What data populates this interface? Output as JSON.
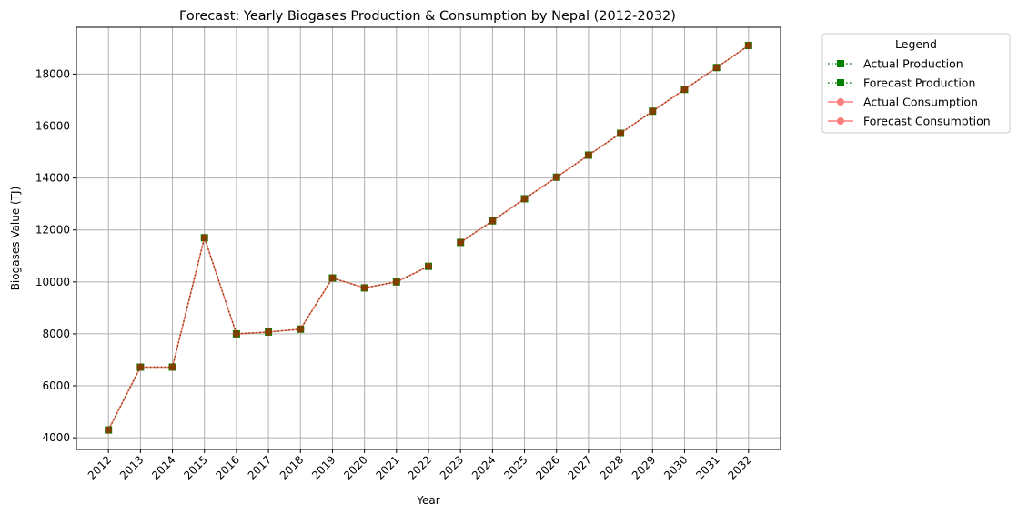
{
  "chart_data": {
    "type": "line",
    "title": "Forecast: Yearly Biogases Production & Consumption by Nepal (2012-2032)",
    "xlabel": "Year",
    "ylabel": "Biogases Value (TJ)",
    "x": [
      2012,
      2013,
      2014,
      2015,
      2016,
      2017,
      2018,
      2019,
      2020,
      2021,
      2022,
      2023,
      2024,
      2025,
      2026,
      2027,
      2028,
      2029,
      2030,
      2031,
      2032
    ],
    "x_tick_labels": [
      "2012",
      "2013",
      "2014",
      "2015",
      "2016",
      "2017",
      "2018",
      "2019",
      "2020",
      "2021",
      "2022",
      "2023",
      "2024",
      "2025",
      "2026",
      "2027",
      "2028",
      "2029",
      "2030",
      "2031",
      "2032"
    ],
    "y_ticks": [
      4000,
      6000,
      8000,
      10000,
      12000,
      14000,
      16000,
      18000
    ],
    "y_tick_labels": [
      "4000",
      "6000",
      "8000",
      "10000",
      "12000",
      "14000",
      "16000",
      "18000"
    ],
    "ylim": [
      3550,
      19800
    ],
    "grid": true,
    "legend_title": "Legend",
    "legend_position": "outside-top-right",
    "series": [
      {
        "name": "Actual Production",
        "color": "#008000",
        "marker": "square",
        "line_style": "dotted",
        "x": [
          2012,
          2013,
          2014,
          2015,
          2016,
          2017,
          2018,
          2019,
          2020,
          2021,
          2022
        ],
        "values": [
          4300,
          6720,
          6720,
          11700,
          8000,
          8070,
          8180,
          10150,
          9770,
          10000,
          10600
        ]
      },
      {
        "name": "Forecast Production",
        "color": "#008000",
        "marker": "square",
        "line_style": "dotted",
        "x": [
          2023,
          2024,
          2025,
          2026,
          2027,
          2028,
          2029,
          2030,
          2031,
          2032
        ],
        "values": [
          11520,
          12350,
          13200,
          14030,
          14880,
          15720,
          16570,
          17410,
          18250,
          19100
        ]
      },
      {
        "name": "Actual Consumption",
        "color": "#ff0000",
        "opacity": 0.5,
        "marker": "circle",
        "line_style": "solid",
        "x": [
          2012,
          2013,
          2014,
          2015,
          2016,
          2017,
          2018,
          2019,
          2020,
          2021,
          2022
        ],
        "values": [
          4300,
          6720,
          6720,
          11700,
          8000,
          8070,
          8180,
          10150,
          9770,
          10000,
          10600
        ]
      },
      {
        "name": "Forecast Consumption",
        "color": "#ff0000",
        "opacity": 0.5,
        "marker": "circle",
        "line_style": "solid",
        "x": [
          2023,
          2024,
          2025,
          2026,
          2027,
          2028,
          2029,
          2030,
          2031,
          2032
        ],
        "values": [
          11520,
          12350,
          13200,
          14030,
          14880,
          15720,
          16570,
          17410,
          18250,
          19100
        ]
      }
    ]
  }
}
